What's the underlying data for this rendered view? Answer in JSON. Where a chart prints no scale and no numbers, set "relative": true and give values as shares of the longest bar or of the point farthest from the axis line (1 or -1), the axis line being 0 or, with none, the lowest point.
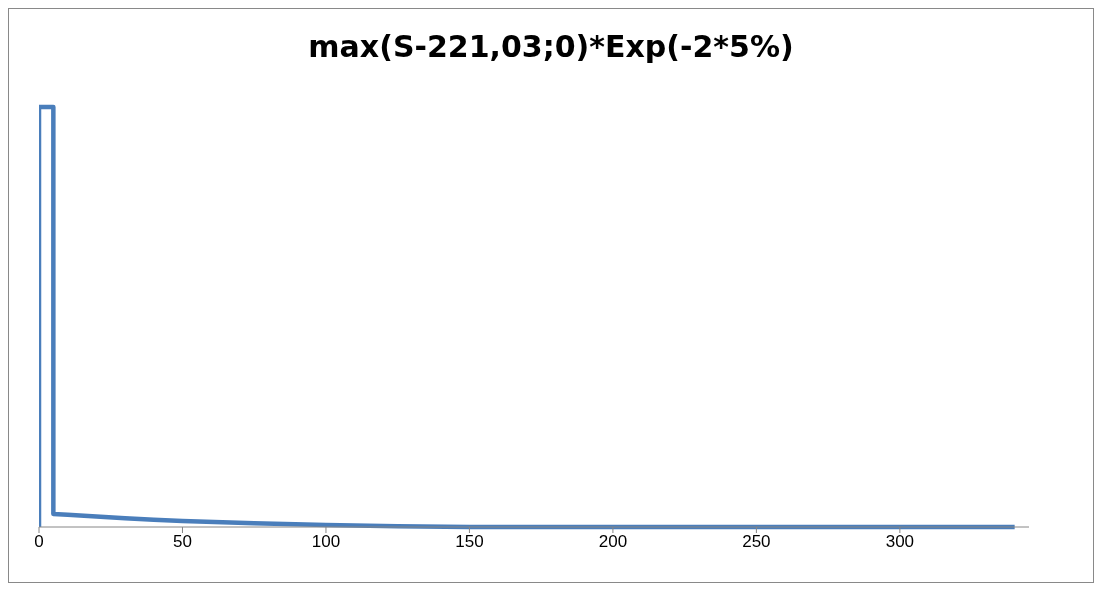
{
  "chart_data": {
    "type": "line",
    "title": "max(S-221,03;0)*Exp(-2*5%)",
    "relative": true,
    "x": [
      0,
      0,
      5,
      5,
      10,
      20,
      30,
      40,
      50,
      75,
      100,
      125,
      150,
      200,
      250,
      300,
      340
    ],
    "series": [
      {
        "color": "#4a7ebb",
        "values": [
          0,
          1,
          1,
          0.031,
          0.029,
          0.025,
          0.021,
          0.017,
          0.014,
          0.009,
          0.005,
          0.002,
          0,
          0,
          0,
          0,
          0
        ]
      }
    ],
    "xlim": [
      0,
      345
    ],
    "xticks": [
      0,
      50,
      100,
      150,
      200,
      250,
      300
    ],
    "tick_labels": "x",
    "grid": false,
    "legend": false,
    "marker": "none",
    "line_style": "solid"
  }
}
